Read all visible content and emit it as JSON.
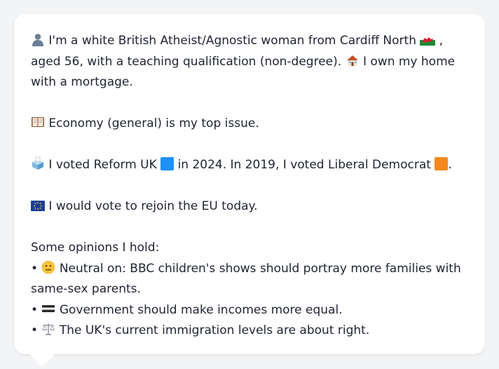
{
  "profile": {
    "intro_icon": "person-icon",
    "intro_text_1": "I'm a white British Atheist/Agnostic woman from Cardiff North",
    "wales_flag_icon": "wales-flag-icon",
    "intro_text_2": ", aged 56, with a teaching qualification (non-degree).",
    "house_icon": "house-icon",
    "intro_text_3": "I own my home with a mortgage."
  },
  "top_issue": {
    "icon": "ledger-icon",
    "text": "Economy (general) is my top issue."
  },
  "voting": {
    "icon": "ballot-box-icon",
    "text_1": "I voted Reform UK",
    "reform_color": "#1e90ff",
    "text_2": "in 2024. In 2019, I voted Liberal Democrat",
    "libdem_color": "#f5891f",
    "text_3": "."
  },
  "eu": {
    "icon": "eu-flag-icon",
    "text": "I would vote to rejoin the EU today."
  },
  "opinions": {
    "heading": "Some opinions I hold:",
    "items": [
      {
        "bullet": "•",
        "icon": "neutral-face-icon",
        "text": "Neutral on: BBC children's shows should portray more families with same-sex parents."
      },
      {
        "bullet": "•",
        "icon": "equals-icon",
        "text": "Government should make incomes more equal."
      },
      {
        "bullet": "•",
        "icon": "scales-icon",
        "text": "The UK's current immigration levels are about right."
      }
    ]
  }
}
